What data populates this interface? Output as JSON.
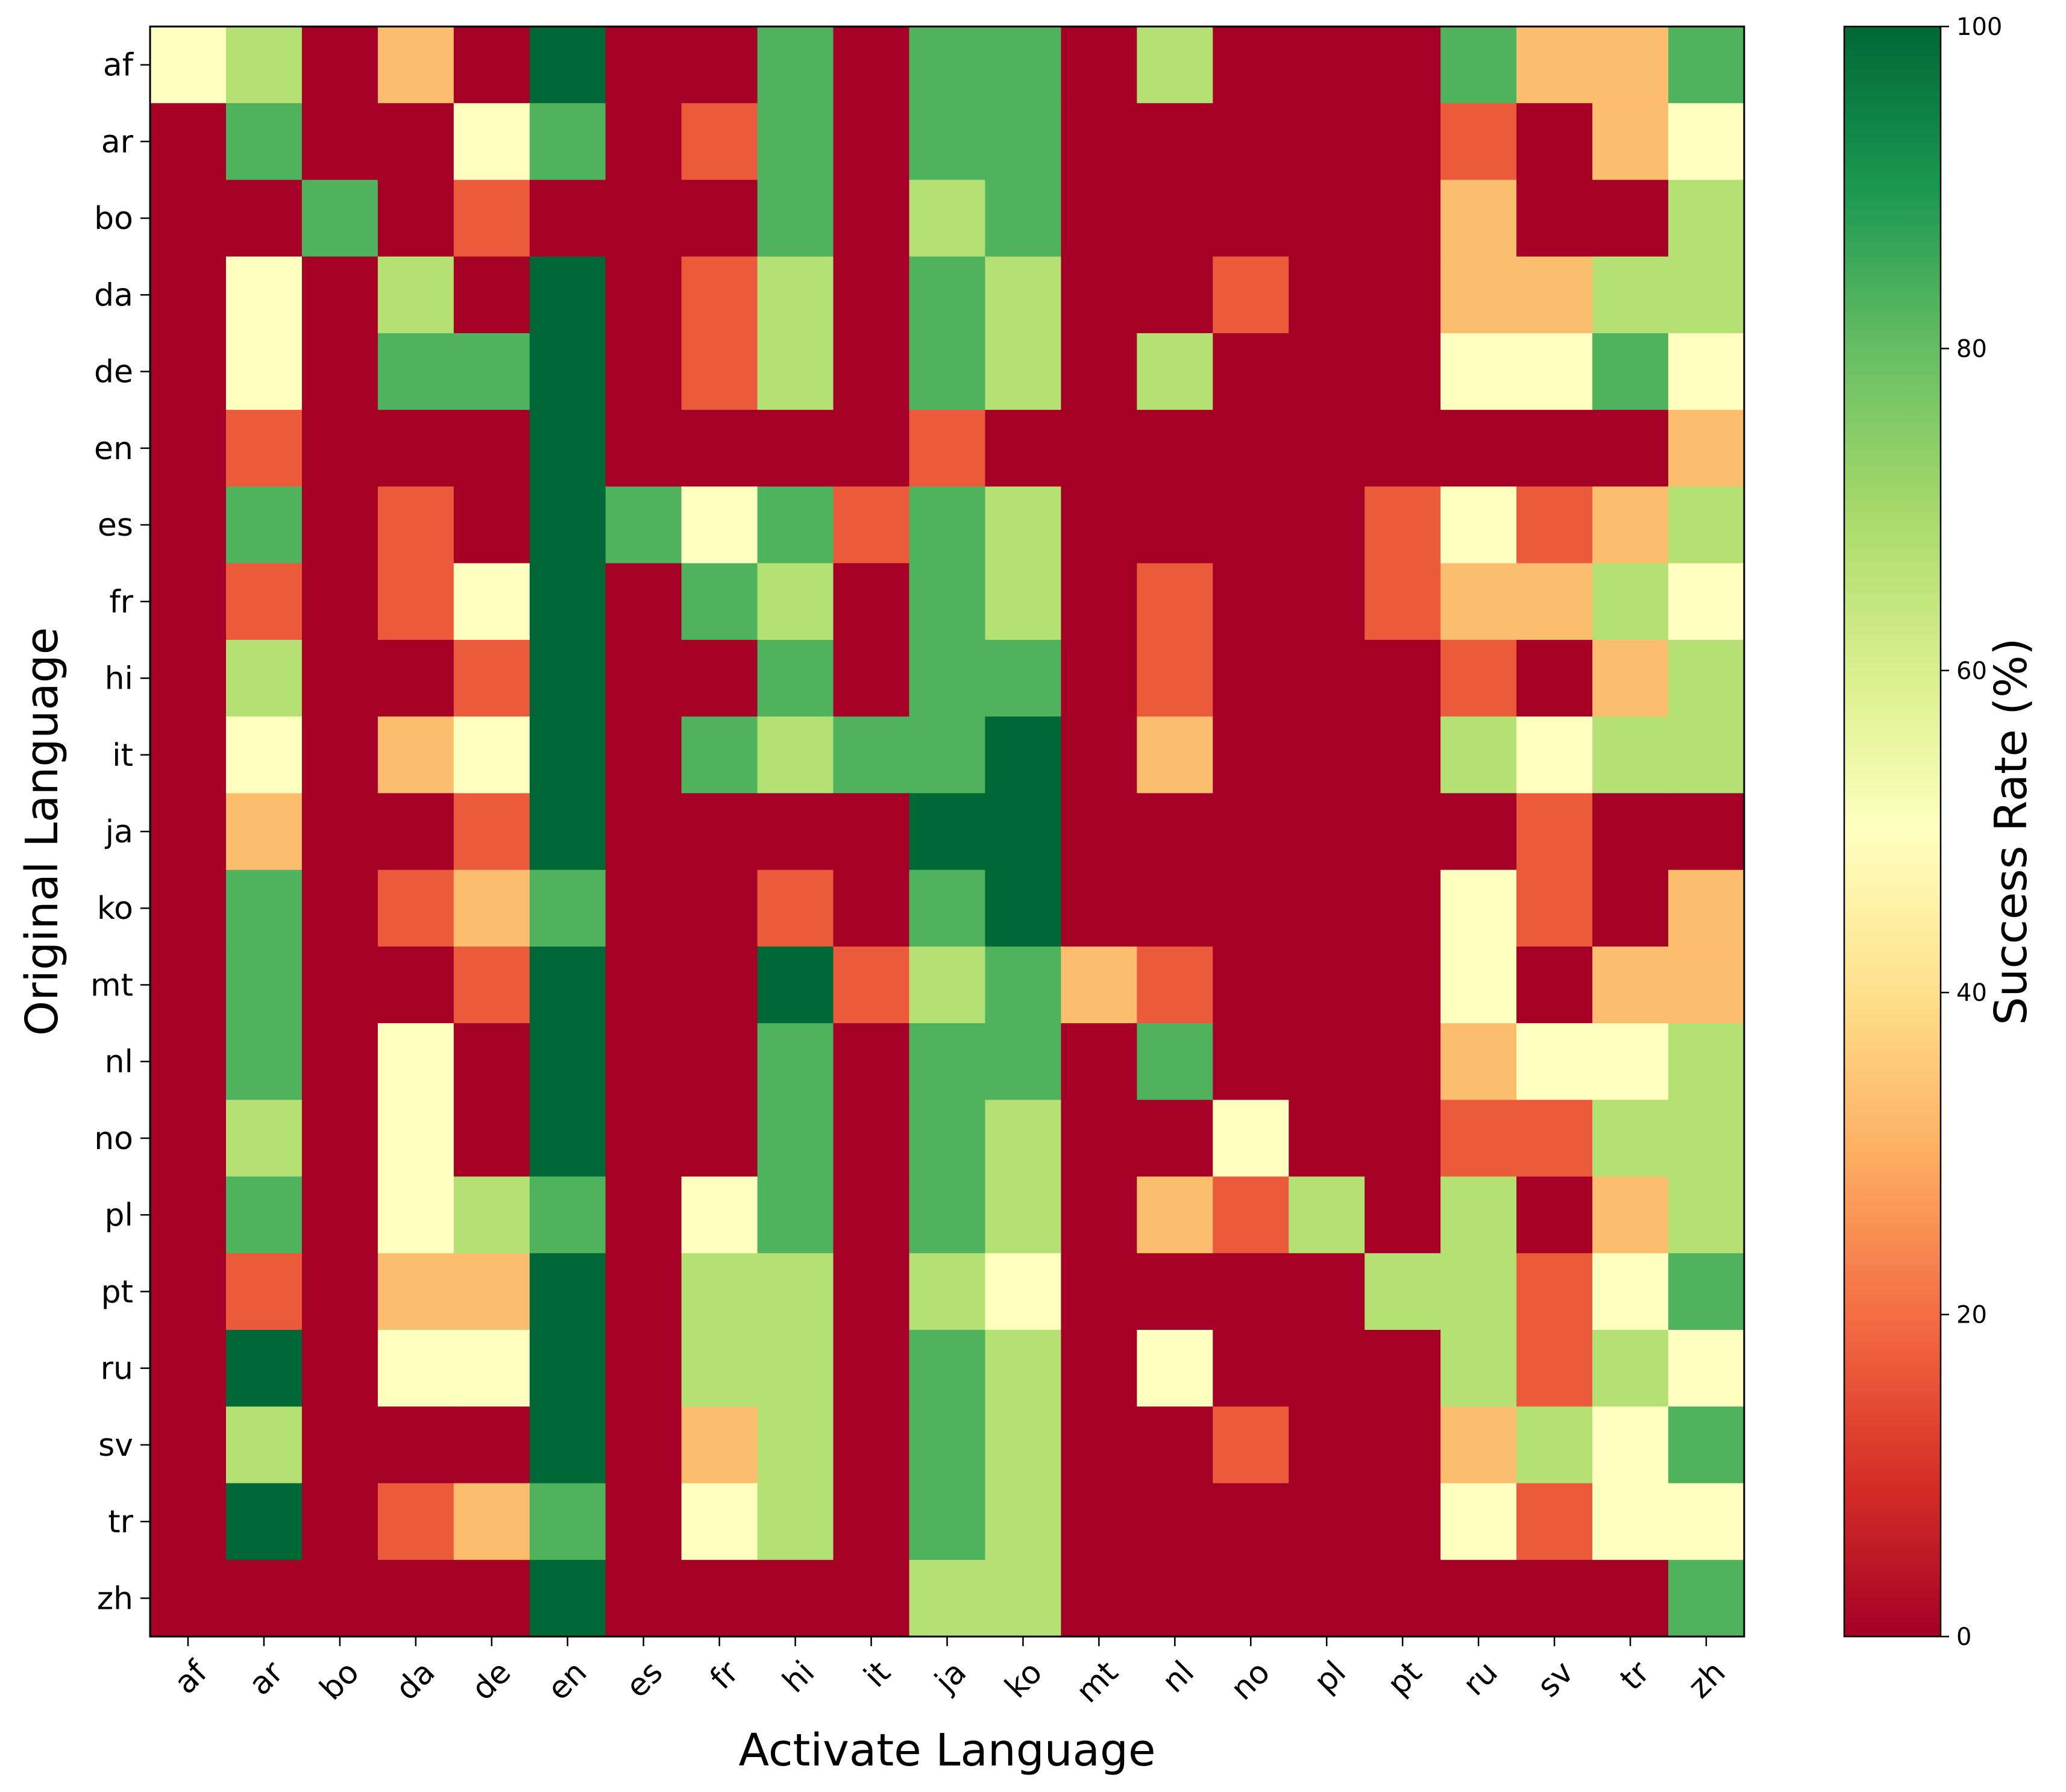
{
  "chart_data": {
    "type": "heatmap",
    "xlabel": "Activate Language",
    "ylabel": "Original Language",
    "x_categories": [
      "af",
      "ar",
      "bo",
      "da",
      "de",
      "en",
      "es",
      "fr",
      "hi",
      "it",
      "ja",
      "ko",
      "mt",
      "nl",
      "no",
      "pl",
      "pt",
      "ru",
      "sv",
      "tr",
      "zh"
    ],
    "y_categories": [
      "af",
      "ar",
      "bo",
      "da",
      "de",
      "en",
      "es",
      "fr",
      "hi",
      "it",
      "ja",
      "ko",
      "mt",
      "nl",
      "no",
      "pl",
      "pt",
      "ru",
      "sv",
      "tr",
      "zh"
    ],
    "values": [
      [
        50,
        67,
        0,
        33,
        0,
        100,
        0,
        0,
        83,
        0,
        83,
        83,
        0,
        67,
        0,
        0,
        0,
        83,
        33,
        33,
        83
      ],
      [
        0,
        83,
        0,
        0,
        50,
        83,
        0,
        17,
        83,
        0,
        83,
        83,
        0,
        0,
        0,
        0,
        0,
        17,
        0,
        33,
        50
      ],
      [
        0,
        0,
        83,
        0,
        17,
        0,
        0,
        0,
        83,
        0,
        67,
        83,
        0,
        0,
        0,
        0,
        0,
        33,
        0,
        0,
        67
      ],
      [
        0,
        50,
        0,
        67,
        0,
        100,
        0,
        17,
        67,
        0,
        83,
        67,
        0,
        0,
        17,
        0,
        0,
        33,
        33,
        67,
        67
      ],
      [
        0,
        50,
        0,
        83,
        83,
        100,
        0,
        17,
        67,
        0,
        83,
        67,
        0,
        67,
        0,
        0,
        0,
        50,
        50,
        83,
        50
      ],
      [
        0,
        17,
        0,
        0,
        0,
        100,
        0,
        0,
        0,
        0,
        17,
        0,
        0,
        0,
        0,
        0,
        0,
        0,
        0,
        0,
        33
      ],
      [
        0,
        83,
        0,
        17,
        0,
        100,
        83,
        50,
        83,
        17,
        83,
        67,
        0,
        0,
        0,
        0,
        17,
        50,
        17,
        33,
        67
      ],
      [
        0,
        17,
        0,
        17,
        50,
        100,
        0,
        83,
        67,
        0,
        83,
        67,
        0,
        17,
        0,
        0,
        17,
        33,
        33,
        67,
        50
      ],
      [
        0,
        67,
        0,
        0,
        17,
        100,
        0,
        0,
        83,
        0,
        83,
        83,
        0,
        17,
        0,
        0,
        0,
        17,
        0,
        33,
        67
      ],
      [
        0,
        50,
        0,
        33,
        50,
        100,
        0,
        83,
        67,
        83,
        83,
        100,
        0,
        33,
        0,
        0,
        0,
        67,
        50,
        67,
        67
      ],
      [
        0,
        33,
        0,
        0,
        17,
        100,
        0,
        0,
        0,
        0,
        100,
        100,
        0,
        0,
        0,
        0,
        0,
        0,
        17,
        0,
        0
      ],
      [
        0,
        83,
        0,
        17,
        33,
        83,
        0,
        0,
        17,
        0,
        83,
        100,
        0,
        0,
        0,
        0,
        0,
        50,
        17,
        0,
        33
      ],
      [
        0,
        83,
        0,
        0,
        17,
        100,
        0,
        0,
        100,
        17,
        67,
        83,
        33,
        17,
        0,
        0,
        0,
        50,
        0,
        33,
        33
      ],
      [
        0,
        83,
        0,
        50,
        0,
        100,
        0,
        0,
        83,
        0,
        83,
        83,
        0,
        83,
        0,
        0,
        0,
        33,
        50,
        50,
        67
      ],
      [
        0,
        67,
        0,
        50,
        0,
        100,
        0,
        0,
        83,
        0,
        83,
        67,
        0,
        0,
        50,
        0,
        0,
        17,
        17,
        67,
        67
      ],
      [
        0,
        83,
        0,
        50,
        67,
        83,
        0,
        50,
        83,
        0,
        83,
        67,
        0,
        33,
        17,
        67,
        0,
        67,
        0,
        33,
        67
      ],
      [
        0,
        17,
        0,
        33,
        33,
        100,
        0,
        67,
        67,
        0,
        67,
        50,
        0,
        0,
        0,
        0,
        67,
        67,
        17,
        50,
        83
      ],
      [
        0,
        100,
        0,
        50,
        50,
        100,
        0,
        67,
        67,
        0,
        83,
        67,
        0,
        50,
        0,
        0,
        0,
        67,
        17,
        67,
        50
      ],
      [
        0,
        67,
        0,
        0,
        0,
        100,
        0,
        33,
        67,
        0,
        83,
        67,
        0,
        0,
        17,
        0,
        0,
        33,
        67,
        50,
        83
      ],
      [
        0,
        100,
        0,
        17,
        33,
        83,
        0,
        50,
        67,
        0,
        83,
        67,
        0,
        0,
        0,
        0,
        0,
        50,
        17,
        50,
        50
      ],
      [
        0,
        0,
        0,
        0,
        0,
        100,
        0,
        0,
        0,
        0,
        67,
        67,
        0,
        0,
        0,
        0,
        0,
        0,
        0,
        0,
        83
      ]
    ],
    "zlim": [
      0,
      100
    ],
    "colormap": "RdYlGn",
    "colorbar": {
      "label": "Success Rate (%)",
      "ticks": [
        0,
        20,
        40,
        60,
        80,
        100
      ],
      "tick_labels": [
        "0",
        "20",
        "40",
        "60",
        "80",
        "100"
      ]
    }
  }
}
